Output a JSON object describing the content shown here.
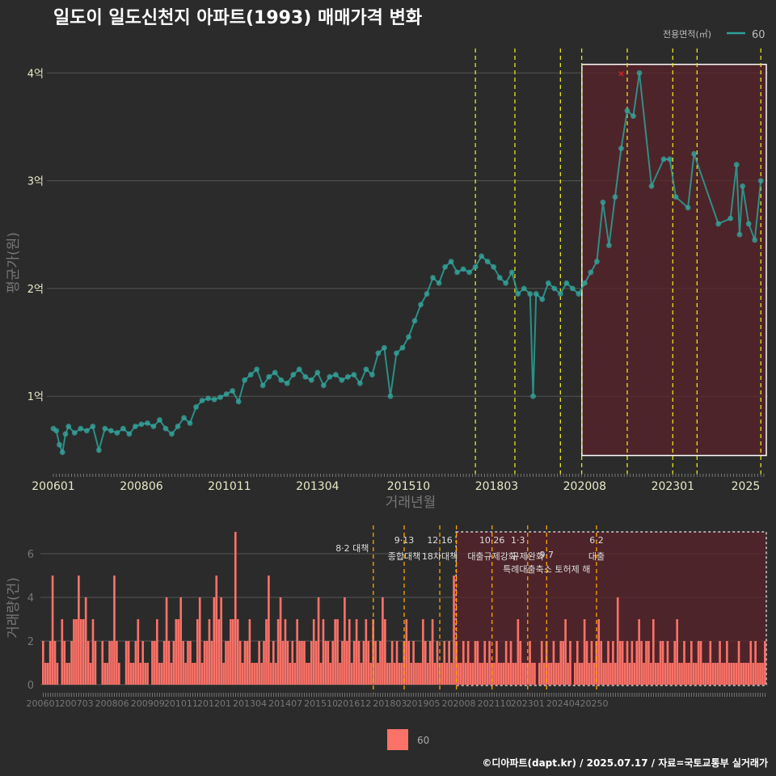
{
  "title": "일도이 일도신천지 아파트(1993) 매매가격 변화",
  "footer": "©디아파트(dapt.kr) / 2025.07.17 / 자료=국토교통부 실거래가",
  "colors": {
    "background": "#2b2b2b",
    "price_line": "#2aa198",
    "price_point": "#35a39a",
    "volume_bar": "#fa7268",
    "policy_line_top": "#e6e61a",
    "policy_line_bottom": "#ffa500",
    "highlight_fill": "#5a2329",
    "outlier": "#dd2222"
  },
  "chart_data": [
    {
      "type": "line",
      "title": "",
      "ylabel": "평균가(원)",
      "xlabel": "거래년월",
      "legend": {
        "title": "전용면적(㎡)",
        "series": "60",
        "placement": "top-right"
      },
      "ylim_eok": [
        0.3,
        4.1
      ],
      "y_ticks": [
        {
          "v": 1,
          "label": "1억"
        },
        {
          "v": 2,
          "label": "2억"
        },
        {
          "v": 3,
          "label": "3억"
        },
        {
          "v": 4,
          "label": "4억"
        }
      ],
      "x_range": [
        "2006-01",
        "2025-07"
      ],
      "x_ticks": [
        "200601",
        "200806",
        "201011",
        "201304",
        "201510",
        "201803",
        "202008",
        "202301",
        "2025"
      ],
      "policy_dates": [
        "2017-08",
        "2018-09",
        "2019-12",
        "2020-07",
        "2021-10",
        "2023-01",
        "2023-09",
        "2025-06"
      ],
      "highlight_range": [
        "2020-06",
        "2025-07"
      ],
      "highlight_ylim": [
        0.45,
        4.08
      ],
      "outlier": {
        "x": "2021-08",
        "y": 4.0
      },
      "grid": true,
      "series": [
        {
          "name": "60",
          "points": [
            [
              "2006-01",
              0.7
            ],
            [
              "2006-02",
              0.68
            ],
            [
              "2006-03",
              0.55
            ],
            [
              "2006-04",
              0.48
            ],
            [
              "2006-05",
              0.65
            ],
            [
              "2006-06",
              0.72
            ],
            [
              "2006-08",
              0.66
            ],
            [
              "2006-10",
              0.7
            ],
            [
              "2006-12",
              0.68
            ],
            [
              "2007-02",
              0.72
            ],
            [
              "2007-04",
              0.5
            ],
            [
              "2007-06",
              0.7
            ],
            [
              "2007-08",
              0.68
            ],
            [
              "2007-10",
              0.66
            ],
            [
              "2007-12",
              0.7
            ],
            [
              "2008-02",
              0.65
            ],
            [
              "2008-04",
              0.72
            ],
            [
              "2008-06",
              0.74
            ],
            [
              "2008-08",
              0.75
            ],
            [
              "2008-10",
              0.72
            ],
            [
              "2008-12",
              0.78
            ],
            [
              "2009-02",
              0.7
            ],
            [
              "2009-04",
              0.65
            ],
            [
              "2009-06",
              0.72
            ],
            [
              "2009-08",
              0.8
            ],
            [
              "2009-10",
              0.75
            ],
            [
              "2009-12",
              0.9
            ],
            [
              "2010-02",
              0.96
            ],
            [
              "2010-04",
              0.98
            ],
            [
              "2010-06",
              0.97
            ],
            [
              "2010-08",
              0.99
            ],
            [
              "2010-10",
              1.02
            ],
            [
              "2010-12",
              1.05
            ],
            [
              "2011-02",
              0.95
            ],
            [
              "2011-04",
              1.15
            ],
            [
              "2011-06",
              1.2
            ],
            [
              "2011-08",
              1.25
            ],
            [
              "2011-10",
              1.1
            ],
            [
              "2011-12",
              1.18
            ],
            [
              "2012-02",
              1.22
            ],
            [
              "2012-04",
              1.15
            ],
            [
              "2012-06",
              1.12
            ],
            [
              "2012-08",
              1.2
            ],
            [
              "2012-10",
              1.25
            ],
            [
              "2012-12",
              1.18
            ],
            [
              "2013-02",
              1.15
            ],
            [
              "2013-04",
              1.22
            ],
            [
              "2013-06",
              1.1
            ],
            [
              "2013-08",
              1.18
            ],
            [
              "2013-10",
              1.2
            ],
            [
              "2013-12",
              1.15
            ],
            [
              "2014-02",
              1.18
            ],
            [
              "2014-04",
              1.2
            ],
            [
              "2014-06",
              1.12
            ],
            [
              "2014-08",
              1.25
            ],
            [
              "2014-10",
              1.2
            ],
            [
              "2014-12",
              1.4
            ],
            [
              "2015-02",
              1.45
            ],
            [
              "2015-04",
              1.0
            ],
            [
              "2015-06",
              1.4
            ],
            [
              "2015-08",
              1.45
            ],
            [
              "2015-10",
              1.55
            ],
            [
              "2015-12",
              1.7
            ],
            [
              "2016-02",
              1.85
            ],
            [
              "2016-04",
              1.95
            ],
            [
              "2016-06",
              2.1
            ],
            [
              "2016-08",
              2.05
            ],
            [
              "2016-10",
              2.2
            ],
            [
              "2016-12",
              2.25
            ],
            [
              "2017-02",
              2.15
            ],
            [
              "2017-04",
              2.18
            ],
            [
              "2017-06",
              2.15
            ],
            [
              "2017-08",
              2.2
            ],
            [
              "2017-10",
              2.3
            ],
            [
              "2017-12",
              2.25
            ],
            [
              "2018-02",
              2.2
            ],
            [
              "2018-04",
              2.1
            ],
            [
              "2018-06",
              2.05
            ],
            [
              "2018-08",
              2.15
            ],
            [
              "2018-10",
              1.95
            ],
            [
              "2018-12",
              2.0
            ],
            [
              "2019-02",
              1.95
            ],
            [
              "2019-03",
              1.0
            ],
            [
              "2019-04",
              1.95
            ],
            [
              "2019-06",
              1.9
            ],
            [
              "2019-08",
              2.05
            ],
            [
              "2019-10",
              2.0
            ],
            [
              "2019-12",
              1.95
            ],
            [
              "2020-02",
              2.05
            ],
            [
              "2020-04",
              2.0
            ],
            [
              "2020-06",
              1.95
            ],
            [
              "2020-08",
              2.05
            ],
            [
              "2020-10",
              2.15
            ],
            [
              "2020-12",
              2.25
            ],
            [
              "2021-02",
              2.8
            ],
            [
              "2021-04",
              2.4
            ],
            [
              "2021-06",
              2.85
            ],
            [
              "2021-08",
              3.3
            ],
            [
              "2021-10",
              3.65
            ],
            [
              "2021-12",
              3.6
            ],
            [
              "2022-02",
              4.0
            ],
            [
              "2022-06",
              2.95
            ],
            [
              "2022-10",
              3.2
            ],
            [
              "2022-12",
              3.2
            ],
            [
              "2023-02",
              2.85
            ],
            [
              "2023-06",
              2.75
            ],
            [
              "2023-08",
              3.25
            ],
            [
              "2024-04",
              2.6
            ],
            [
              "2024-08",
              2.65
            ],
            [
              "2024-10",
              3.15
            ],
            [
              "2024-11",
              2.5
            ],
            [
              "2024-12",
              2.95
            ],
            [
              "2025-02",
              2.6
            ],
            [
              "2025-04",
              2.45
            ],
            [
              "2025-06",
              3.0
            ]
          ]
        }
      ]
    },
    {
      "type": "bar",
      "title": "",
      "ylabel": "거래량(건)",
      "legend": {
        "series": "60",
        "placement": "bottom"
      },
      "ylim": [
        0,
        7
      ],
      "y_ticks": [
        0,
        2,
        4,
        6
      ],
      "x_ticks": [
        "200601",
        "200703",
        "200806",
        "200909",
        "201011",
        "201201",
        "201304",
        "201407",
        "201510",
        "201612",
        "201803",
        "201905",
        "202008",
        "202110",
        "202301",
        "202404",
        "20250"
      ],
      "highlight_range": [
        "2020-06",
        "2025-07"
      ],
      "policy_events": [
        {
          "date": "2017-08",
          "line1": "8·2 대책",
          "line2": ""
        },
        {
          "date": "2018-09",
          "line1": "9·13",
          "line2": "종합대책"
        },
        {
          "date": "2019-12",
          "line1": "12·16",
          "line2": "18차대책"
        },
        {
          "date": "2020-07",
          "line1": "",
          "line2": ""
        },
        {
          "date": "2021-10",
          "line1": "10·26",
          "line2": "대출규제강화"
        },
        {
          "date": "2023-01",
          "line1": "1·3",
          "line2": "규제완화"
        },
        {
          "date": "2023-09",
          "line1": "9·7",
          "line2": "특례대출축소 토허제 해"
        },
        {
          "date": "2025-06",
          "line1": "6·2",
          "line2": "대출"
        }
      ],
      "series": [
        {
          "name": "60",
          "values": [
            2,
            1,
            1,
            2,
            5,
            2,
            1,
            0,
            3,
            2,
            1,
            1,
            2,
            3,
            3,
            5,
            3,
            3,
            4,
            2,
            1,
            3,
            2,
            0,
            0,
            2,
            1,
            1,
            2,
            2,
            5,
            2,
            1,
            0,
            0,
            2,
            2,
            1,
            1,
            2,
            3,
            1,
            2,
            1,
            1,
            0,
            2,
            2,
            3,
            1,
            1,
            2,
            4,
            2,
            1,
            2,
            3,
            3,
            4,
            2,
            1,
            2,
            2,
            1,
            1,
            3,
            4,
            1,
            2,
            2,
            3,
            2,
            4,
            5,
            3,
            4,
            1,
            2,
            2,
            3,
            3,
            7,
            3,
            2,
            1,
            2,
            2,
            3,
            1,
            1,
            1,
            2,
            1,
            2,
            3,
            5,
            1,
            2,
            1,
            3,
            4,
            2,
            3,
            2,
            1,
            2,
            1,
            3,
            2,
            2,
            2,
            1,
            1,
            2,
            3,
            2,
            4,
            1,
            3,
            2,
            2,
            1,
            2,
            3,
            3,
            1,
            2,
            4,
            2,
            3,
            1,
            2,
            3,
            2,
            1,
            2,
            3,
            2,
            1,
            3,
            2,
            1,
            2,
            4,
            3,
            1,
            1,
            2,
            1,
            2,
            1,
            1,
            2,
            3,
            2,
            1,
            2,
            1,
            1,
            1,
            3,
            2,
            1,
            2,
            3,
            1,
            2,
            1,
            1,
            2,
            1,
            2,
            1,
            5,
            2,
            1,
            1,
            2,
            1,
            2,
            1,
            1,
            2,
            2,
            1,
            1,
            2,
            1,
            2,
            1,
            1,
            2,
            1,
            1,
            1,
            2,
            1,
            2,
            1,
            1,
            3,
            2,
            1,
            1,
            1,
            2,
            1,
            1,
            0,
            1,
            2,
            1,
            2,
            1,
            1,
            2,
            1,
            1,
            2,
            2,
            3,
            1,
            2,
            0,
            1,
            2,
            1,
            1,
            3,
            2,
            1,
            2,
            1,
            2,
            3,
            2,
            1,
            1,
            2,
            1,
            2,
            1,
            4,
            2,
            2,
            1,
            2,
            1,
            2,
            1,
            2,
            3,
            2,
            1,
            2,
            2,
            1,
            3,
            1,
            1,
            2,
            2,
            1,
            2,
            1,
            1,
            2,
            3,
            1,
            1,
            2,
            1,
            1,
            2,
            1,
            1,
            2,
            2,
            1,
            1,
            1,
            2,
            1,
            1,
            1,
            2,
            1,
            1,
            2,
            1,
            1,
            1,
            1,
            2,
            1,
            1,
            1,
            1,
            2,
            1,
            2,
            1,
            1,
            1,
            2
          ]
        }
      ]
    }
  ]
}
